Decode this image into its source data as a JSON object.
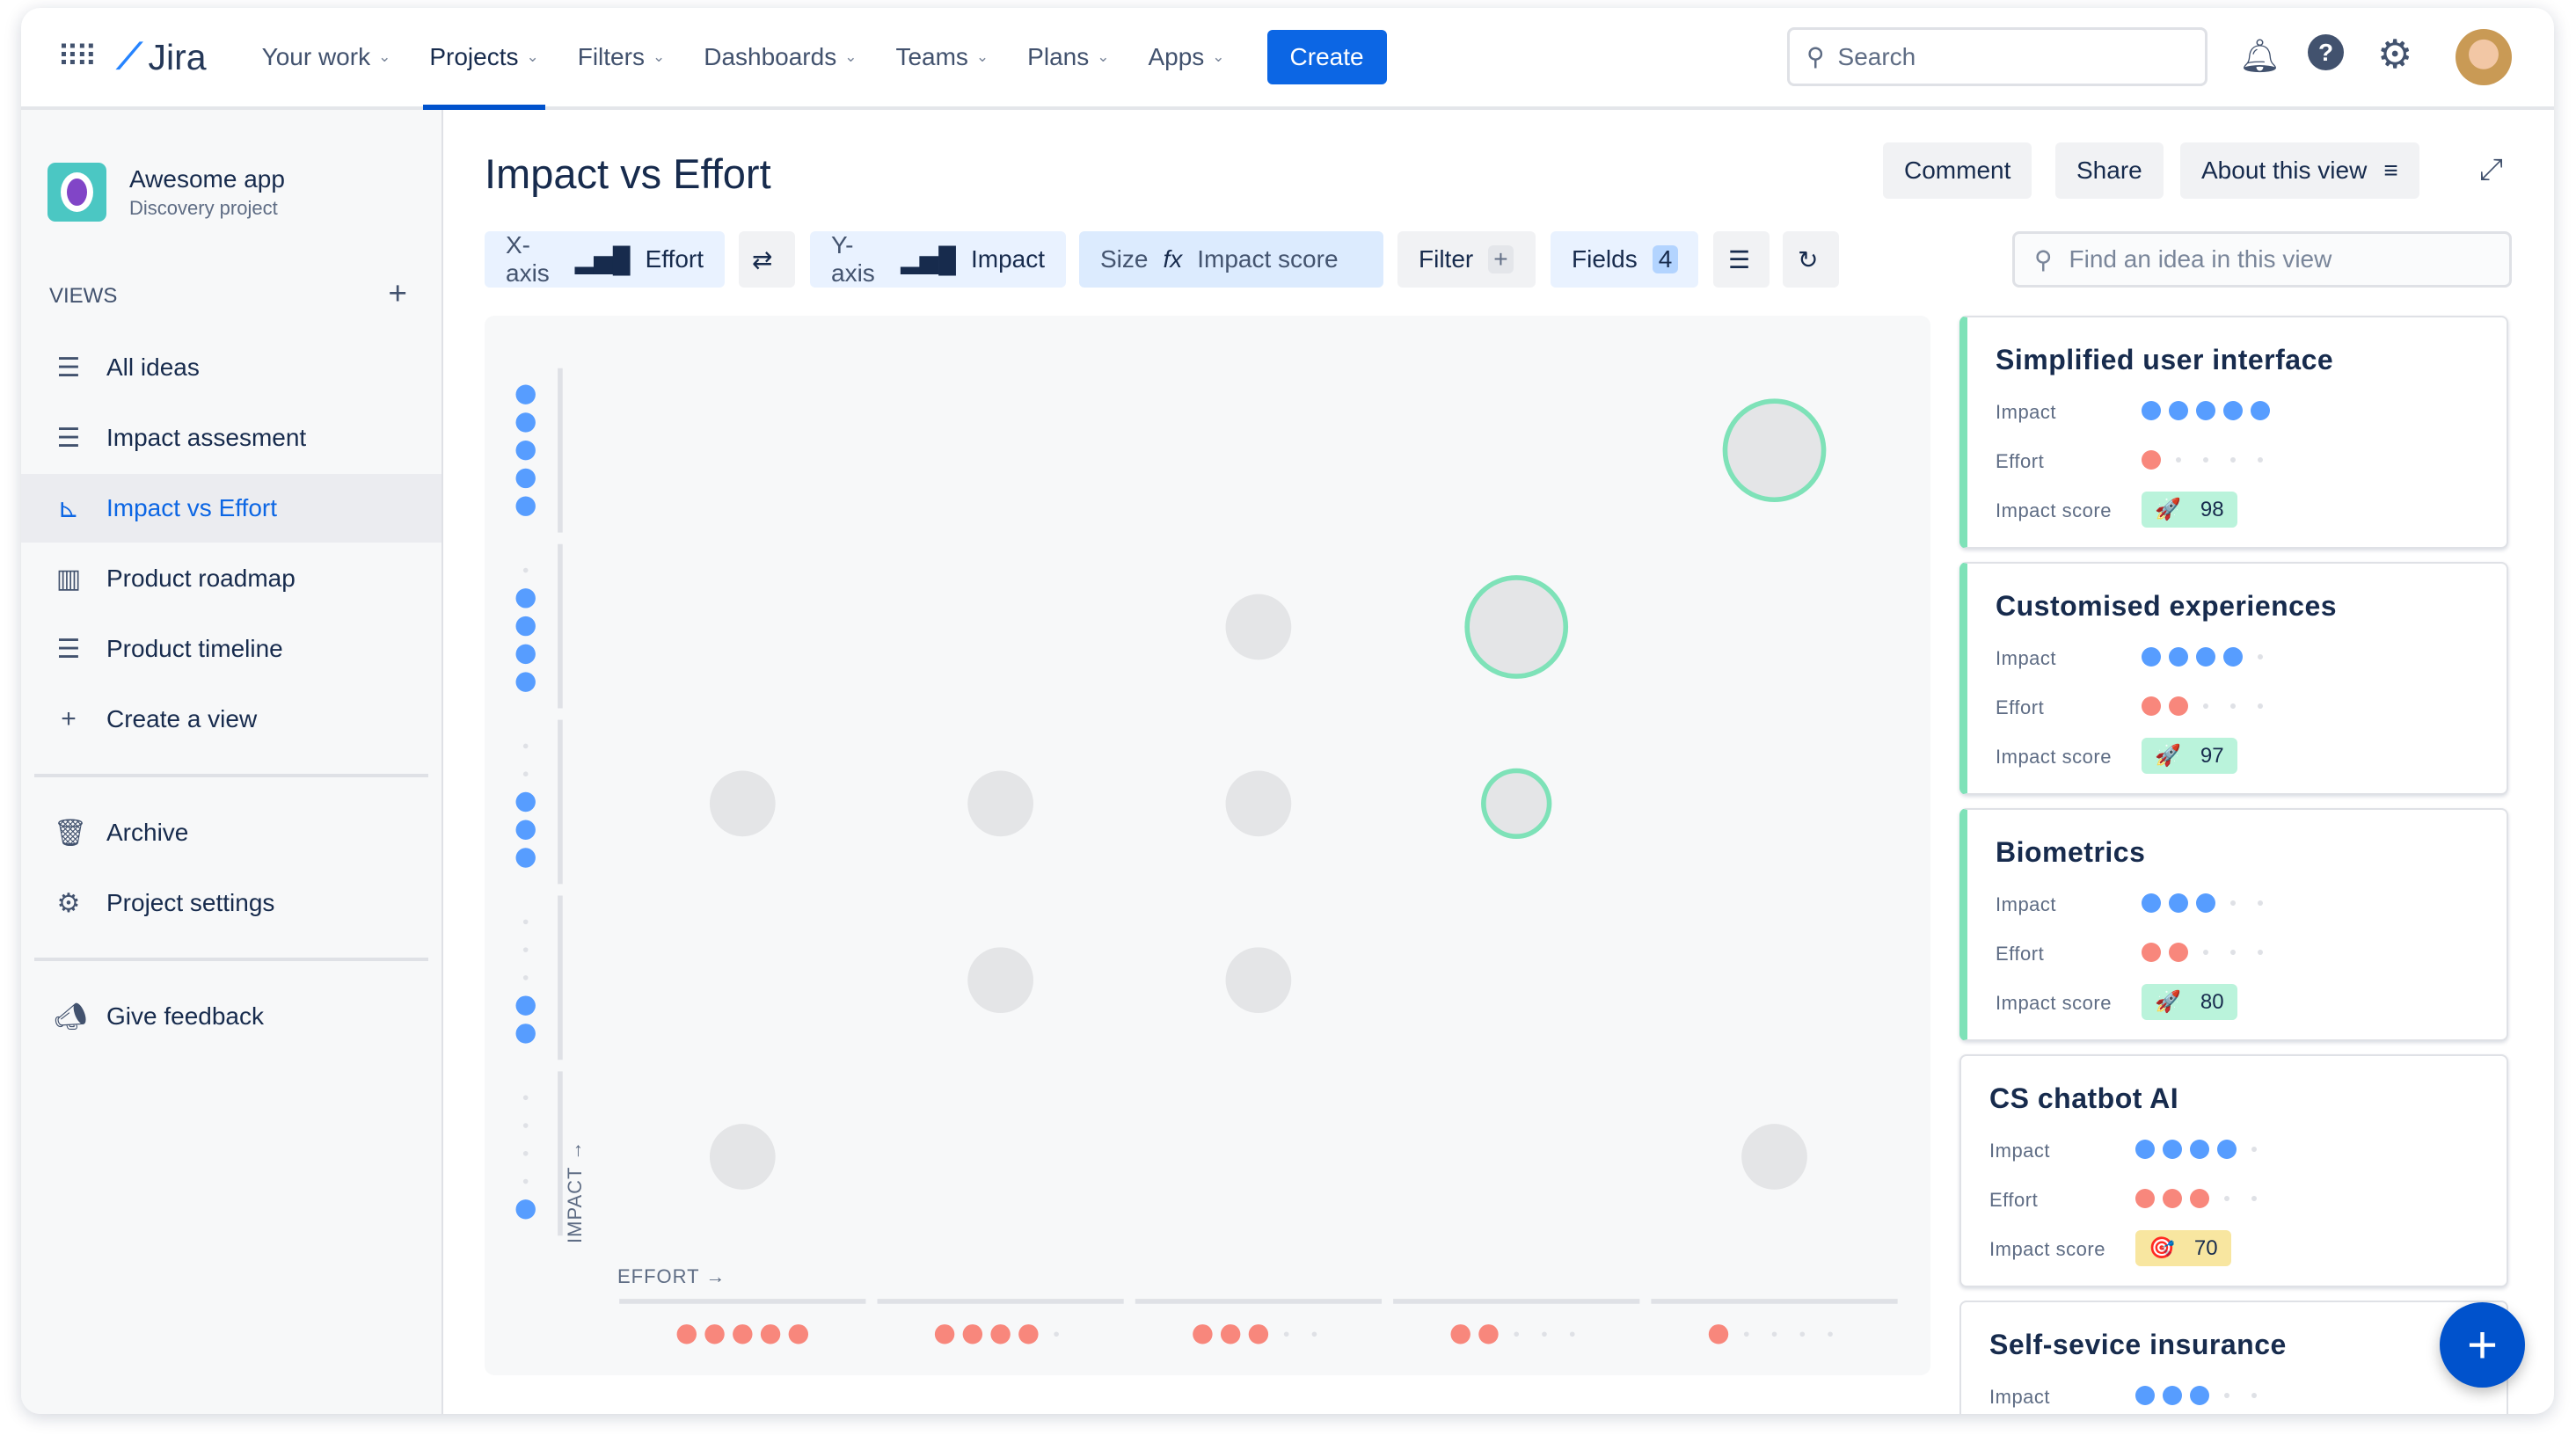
{
  "topbar": {
    "logo": "Jira",
    "nav": [
      {
        "label": "Your work"
      },
      {
        "label": "Projects",
        "active": true
      },
      {
        "label": "Filters"
      },
      {
        "label": "Dashboards"
      },
      {
        "label": "Teams"
      },
      {
        "label": "Plans"
      },
      {
        "label": "Apps"
      }
    ],
    "create": "Create",
    "search_placeholder": "Search"
  },
  "sidebar": {
    "project_name": "Awesome app",
    "project_type": "Discovery project",
    "views_label": "VIEWS",
    "items": [
      {
        "label": "All ideas",
        "icon": "list-icon"
      },
      {
        "label": "Impact assesment",
        "icon": "list-icon"
      },
      {
        "label": "Impact vs Effort",
        "icon": "scatter-chart-icon",
        "active": true
      },
      {
        "label": "Product roadmap",
        "icon": "board-icon"
      },
      {
        "label": "Product timeline",
        "icon": "timeline-icon"
      },
      {
        "label": "Create a view",
        "icon": "plus-icon"
      }
    ],
    "footer": [
      {
        "label": "Archive",
        "icon": "trash-icon"
      },
      {
        "label": "Project settings",
        "icon": "gear-icon"
      }
    ],
    "feedback": "Give feedback"
  },
  "header": {
    "title": "Impact vs Effort",
    "comment": "Comment",
    "share": "Share",
    "about": "About this view"
  },
  "toolbar": {
    "xaxis_label": "X-axis",
    "xaxis_value": "Effort",
    "yaxis_label": "Y-axis",
    "yaxis_value": "Impact",
    "size_label": "Size",
    "size_value": "Impact score",
    "filter": "Filter",
    "fields": "Fields",
    "fields_count": "4",
    "find_placeholder": "Find an idea in this view"
  },
  "colors": {
    "impact": "#579dff",
    "effort": "#f8877c",
    "highlight": "#7ee2b8",
    "bubble": "#e4e5e7",
    "accent": "#0c66e4"
  },
  "chart_data": {
    "type": "scatter",
    "xlabel": "EFFORT",
    "ylabel": "IMPACT",
    "x_range": [
      5,
      1
    ],
    "y_range": [
      1,
      5
    ],
    "grid": false,
    "points": [
      {
        "effort": 1,
        "impact": 5,
        "size": "large",
        "highlighted": true
      },
      {
        "effort": 3,
        "impact": 4,
        "size": "small",
        "highlighted": false
      },
      {
        "effort": 2,
        "impact": 4,
        "size": "large",
        "highlighted": true
      },
      {
        "effort": 5,
        "impact": 3,
        "size": "small",
        "highlighted": false
      },
      {
        "effort": 4,
        "impact": 3,
        "size": "small",
        "highlighted": false
      },
      {
        "effort": 3,
        "impact": 3,
        "size": "small",
        "highlighted": false
      },
      {
        "effort": 2,
        "impact": 3,
        "size": "small",
        "highlighted": true
      },
      {
        "effort": 4,
        "impact": 2,
        "size": "small",
        "highlighted": false
      },
      {
        "effort": 3,
        "impact": 2,
        "size": "small",
        "highlighted": false
      },
      {
        "effort": 5,
        "impact": 1,
        "size": "small",
        "highlighted": false
      },
      {
        "effort": 1,
        "impact": 1,
        "size": "small",
        "highlighted": false
      }
    ]
  },
  "ideas": [
    {
      "title": "Simplified user interface",
      "impact": 5,
      "effort": 1,
      "score": "98",
      "score_icon": "rocket",
      "highlighted": true
    },
    {
      "title": "Customised experiences",
      "impact": 4,
      "effort": 2,
      "score": "97",
      "score_icon": "rocket",
      "highlighted": true
    },
    {
      "title": "Biometrics",
      "impact": 3,
      "effort": 2,
      "score": "80",
      "score_icon": "rocket",
      "highlighted": true
    },
    {
      "title": "CS chatbot AI",
      "impact": 4,
      "effort": 3,
      "score": "70",
      "score_icon": "target",
      "highlighted": false
    },
    {
      "title": "Self-sevice insurance",
      "impact": 3
    }
  ],
  "field_labels": {
    "impact": "Impact",
    "effort": "Effort",
    "score": "Impact score"
  }
}
